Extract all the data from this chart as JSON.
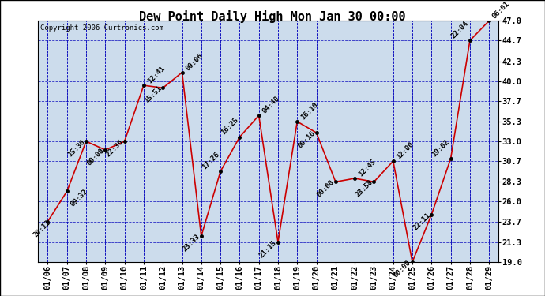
{
  "title": "Dew Point Daily High Mon Jan 30 00:00",
  "copyright": "Copyright 2006 Curtronics.com",
  "title_bg": "#ffffff",
  "plot_bg_color": "#ccdcec",
  "line_color": "#cc0000",
  "marker_color": "#000000",
  "grid_color": "#0000bb",
  "text_color": "#000000",
  "x_labels": [
    "01/06",
    "01/07",
    "01/08",
    "01/09",
    "01/10",
    "01/11",
    "01/12",
    "01/13",
    "01/14",
    "01/15",
    "01/16",
    "01/17",
    "01/18",
    "01/19",
    "01/20",
    "01/21",
    "01/22",
    "01/23",
    "01/24",
    "01/25",
    "01/26",
    "01/27",
    "01/28",
    "01/29"
  ],
  "y_values": [
    23.7,
    27.2,
    33.0,
    32.0,
    33.0,
    39.5,
    39.2,
    41.0,
    22.0,
    29.5,
    33.5,
    36.0,
    21.3,
    35.3,
    34.0,
    28.3,
    28.7,
    28.3,
    30.7,
    19.0,
    24.5,
    31.0,
    44.7,
    47.0
  ],
  "annotations": [
    "20:12",
    "09:32",
    "15:30",
    "00:00",
    "22:36",
    "12:41",
    "15:51",
    "00:06",
    "23:33",
    "17:26",
    "16:25",
    "04:40",
    "21:15",
    "16:10",
    "00:16",
    "00:00",
    "12:45",
    "23:58",
    "12:00",
    "00:00",
    "22:11",
    "19:02",
    "22:04",
    "06:01"
  ],
  "ylim": [
    19.0,
    47.0
  ],
  "ytick_vals": [
    19.0,
    21.3,
    23.7,
    26.0,
    28.3,
    30.7,
    33.0,
    35.3,
    37.7,
    40.0,
    42.3,
    44.7,
    47.0
  ],
  "ytick_labels": [
    "19.0",
    "21.3",
    "23.7",
    "26.0",
    "28.3",
    "30.7",
    "33.0",
    "35.3",
    "37.7",
    "40.0",
    "42.3",
    "44.7",
    "47.0"
  ],
  "title_fontsize": 11,
  "tick_fontsize": 7.5,
  "annot_fontsize": 6.5,
  "copyright_fontsize": 6.5
}
